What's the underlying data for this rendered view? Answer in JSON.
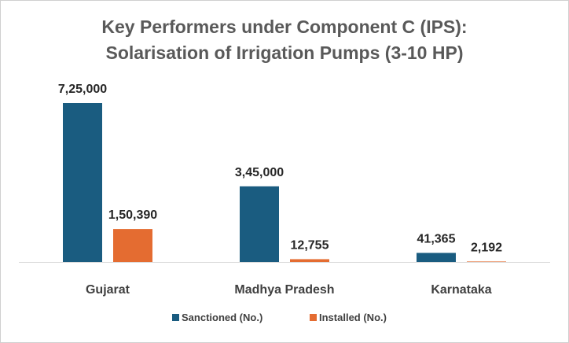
{
  "chart_data": {
    "type": "bar",
    "title_line1": "Key Performers under Component C (IPS):",
    "title_line2": "Solarisation of Irrigation Pumps (3-10 HP)",
    "categories": [
      "Gujarat",
      "Madhya Pradesh",
      "Karnataka"
    ],
    "series": [
      {
        "name": "Sanctioned (No.)",
        "color": "#1a5c80",
        "values": [
          725000,
          345000,
          41365
        ],
        "labels": [
          "7,25,000",
          "3,45,000",
          "41,365"
        ]
      },
      {
        "name": "Installed (No.)",
        "color": "#e46c31",
        "values": [
          150390,
          12755,
          2192
        ],
        "labels": [
          "1,50,390",
          "12,755",
          "2,192"
        ]
      }
    ],
    "ylim": [
      0,
      725000
    ],
    "grid": false,
    "legend_position": "bottom"
  }
}
